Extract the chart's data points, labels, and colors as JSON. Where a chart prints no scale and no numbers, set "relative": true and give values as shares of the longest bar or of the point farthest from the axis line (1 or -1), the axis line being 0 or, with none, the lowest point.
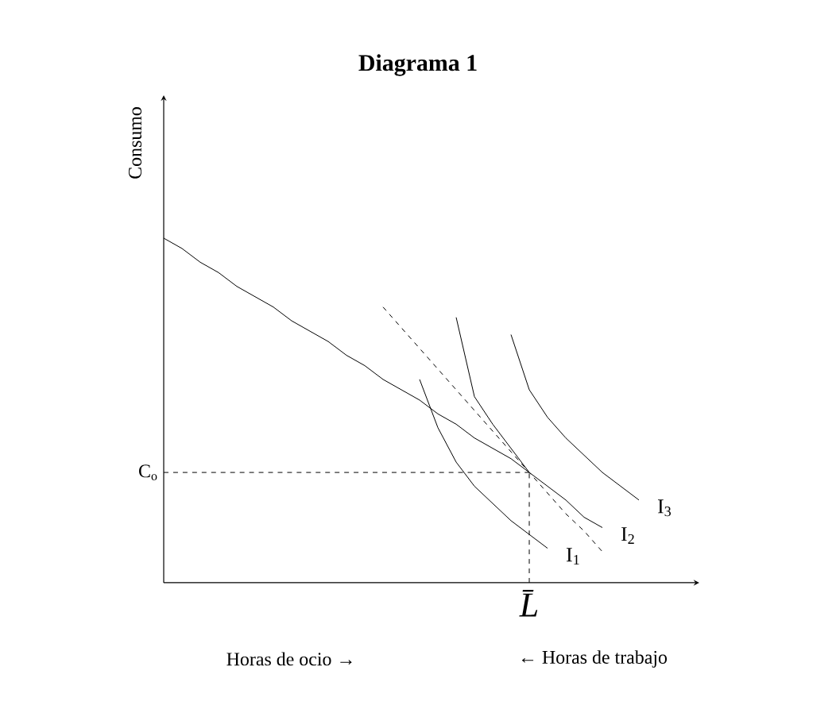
{
  "chart_data": {
    "type": "line",
    "title": "Diagrama 1",
    "ylabel": "Consumo",
    "relative": true,
    "legend": false,
    "marker": "none",
    "grid": false,
    "categories": [
      null,
      null,
      null,
      null,
      null,
      null,
      null,
      null,
      null,
      null,
      null,
      null,
      null,
      null,
      null,
      null,
      null,
      null,
      null,
      null,
      null,
      null,
      null,
      null,
      null,
      null,
      null,
      null,
      null,
      null
    ],
    "series": [
      {
        "color": "#000000",
        "line_style": "solid",
        "values": [
          1.0,
          0.97,
          0.93,
          0.9,
          0.86,
          0.83,
          0.8,
          0.76,
          0.73,
          0.7,
          0.66,
          0.63,
          0.59,
          0.56,
          0.53,
          0.49,
          0.46,
          0.42,
          0.39,
          0.36,
          0.32,
          null,
          null,
          null,
          null,
          null,
          null,
          null,
          null,
          null
        ]
      },
      {
        "color": "#000000",
        "line_style": "dashed",
        "values": [
          null,
          null,
          null,
          null,
          null,
          null,
          null,
          null,
          null,
          null,
          null,
          null,
          0.8,
          0.74,
          0.68,
          0.62,
          0.56,
          0.5,
          0.44,
          0.38,
          0.32,
          0.26,
          0.2,
          0.15,
          0.09,
          null,
          null,
          null,
          null,
          null
        ]
      },
      {
        "name": "I$_{1}$",
        "color": "#000000",
        "line_style": "solid",
        "values": [
          null,
          null,
          null,
          null,
          null,
          null,
          null,
          null,
          null,
          null,
          null,
          null,
          null,
          null,
          0.59,
          0.45,
          0.35,
          0.28,
          0.23,
          0.18,
          0.14,
          0.1,
          null,
          null,
          null,
          null,
          null,
          null,
          null,
          null
        ]
      },
      {
        "name": "I$_{2}$",
        "color": "#000000",
        "line_style": "solid",
        "values": [
          null,
          null,
          null,
          null,
          null,
          null,
          null,
          null,
          null,
          null,
          null,
          null,
          null,
          null,
          null,
          null,
          0.77,
          0.54,
          0.46,
          0.39,
          0.32,
          0.28,
          0.24,
          0.19,
          0.16,
          null,
          null,
          null,
          null,
          null
        ]
      },
      {
        "name": "I$_{3}$",
        "color": "#000000",
        "line_style": "solid",
        "values": [
          null,
          null,
          null,
          null,
          null,
          null,
          null,
          null,
          null,
          null,
          null,
          null,
          null,
          null,
          null,
          null,
          null,
          null,
          null,
          0.72,
          0.56,
          0.48,
          0.42,
          0.37,
          0.32,
          0.28,
          0.24,
          null,
          null,
          null
        ]
      }
    ],
    "ref_lines": [
      {
        "axis": "y",
        "value": 0.32,
        "label": "C$_{o}$",
        "line_style": "dashed"
      }
    ],
    "annotations": [
      "Horas de ocio  →",
      "← Horas de trabajo",
      "L̄"
    ]
  }
}
